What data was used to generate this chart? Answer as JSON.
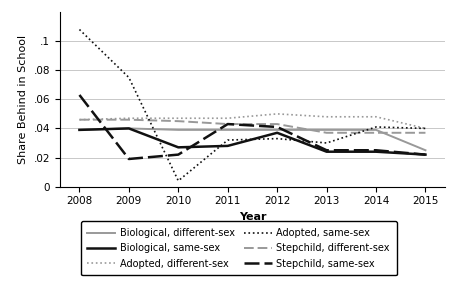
{
  "years": [
    2008,
    2009,
    2010,
    2011,
    2012,
    2013,
    2014,
    2015
  ],
  "bio_diff": [
    0.039,
    0.04,
    0.039,
    0.039,
    0.039,
    0.039,
    0.039,
    0.025
  ],
  "bio_same": [
    0.039,
    0.04,
    0.027,
    0.028,
    0.037,
    0.024,
    0.024,
    0.022
  ],
  "adopted_diff": [
    0.046,
    0.047,
    0.047,
    0.047,
    0.05,
    0.048,
    0.048,
    0.04
  ],
  "adopted_same": [
    0.108,
    0.075,
    0.004,
    0.032,
    0.033,
    0.03,
    0.041,
    0.04
  ],
  "step_diff": [
    0.046,
    0.046,
    0.045,
    0.043,
    0.043,
    0.037,
    0.037,
    0.037
  ],
  "step_same": [
    0.063,
    0.019,
    0.022,
    0.043,
    0.041,
    0.025,
    0.025,
    0.022
  ],
  "ylim": [
    0,
    0.12
  ],
  "yticks": [
    0,
    0.02,
    0.04,
    0.06,
    0.08,
    0.1
  ],
  "ytick_labels": [
    "0",
    ".02",
    ".04",
    ".06",
    ".08",
    ".1"
  ],
  "xlabel": "Year",
  "ylabel": "Share Behind in School",
  "color_diff": "#999999",
  "color_same": "#111111",
  "legend_fontsize": 7.0,
  "axis_fontsize": 8,
  "tick_fontsize": 7.5
}
